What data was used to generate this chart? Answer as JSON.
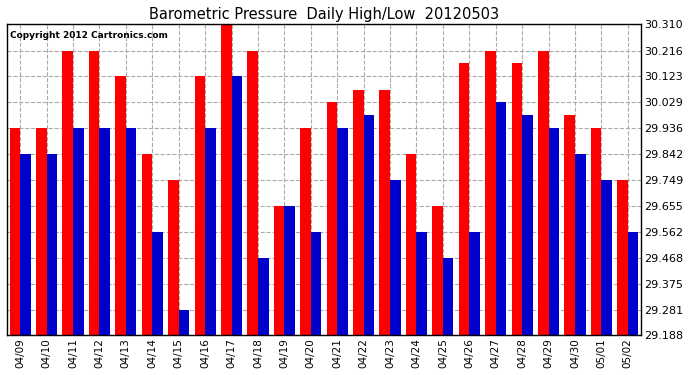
{
  "title": "Barometric Pressure  Daily High/Low  20120503",
  "copyright": "Copyright 2012 Cartronics.com",
  "dates": [
    "04/09",
    "04/10",
    "04/11",
    "04/12",
    "04/13",
    "04/14",
    "04/15",
    "04/16",
    "04/17",
    "04/18",
    "04/19",
    "04/20",
    "04/21",
    "04/22",
    "04/23",
    "04/24",
    "04/25",
    "04/26",
    "04/27",
    "04/28",
    "04/29",
    "04/30",
    "05/01",
    "05/02"
  ],
  "highs": [
    29.936,
    29.936,
    30.216,
    30.216,
    30.123,
    29.842,
    29.749,
    30.123,
    30.31,
    30.216,
    29.655,
    29.936,
    30.029,
    30.075,
    30.075,
    29.842,
    29.655,
    30.17,
    30.216,
    30.17,
    30.216,
    29.983,
    29.936,
    29.749
  ],
  "lows": [
    29.842,
    29.842,
    29.936,
    29.936,
    29.936,
    29.562,
    29.281,
    29.936,
    30.123,
    29.468,
    29.655,
    29.562,
    29.936,
    29.983,
    29.749,
    29.562,
    29.468,
    29.562,
    30.029,
    29.983,
    29.936,
    29.842,
    29.749,
    29.562
  ],
  "high_color": "#ff0000",
  "low_color": "#0000cc",
  "bg_color": "#ffffff",
  "grid_color": "#aaaaaa",
  "ylim_min": 29.188,
  "ylim_max": 30.31,
  "yticks": [
    29.188,
    29.281,
    29.375,
    29.468,
    29.562,
    29.655,
    29.749,
    29.842,
    29.936,
    30.029,
    30.123,
    30.216,
    30.31
  ]
}
